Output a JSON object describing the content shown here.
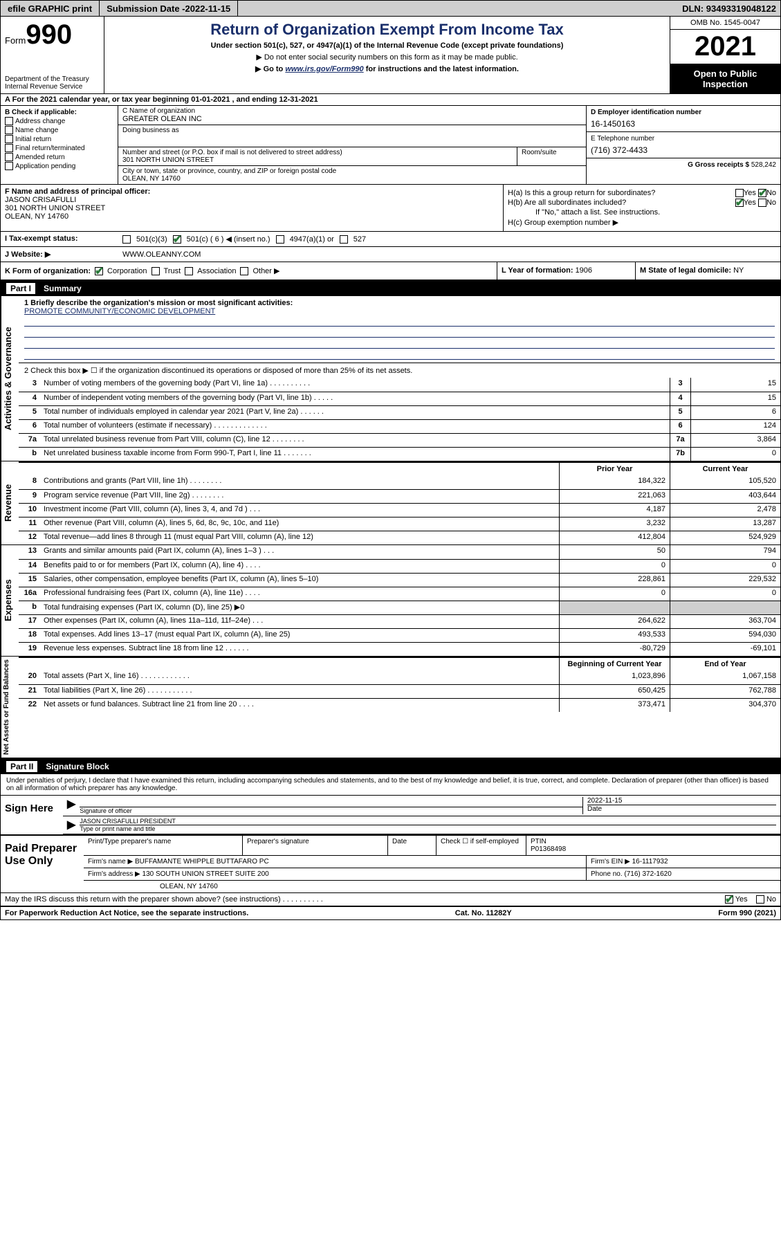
{
  "topbar": {
    "efile": "efile GRAPHIC print",
    "submission_label": "Submission Date - ",
    "submission_date": "2022-11-15",
    "dln_label": "DLN: ",
    "dln": "93493319048122"
  },
  "header": {
    "form_prefix": "Form",
    "form_number": "990",
    "dept": "Department of the Treasury\nInternal Revenue Service",
    "title": "Return of Organization Exempt From Income Tax",
    "sub1": "Under section 501(c), 527, or 4947(a)(1) of the Internal Revenue Code (except private foundations)",
    "sub2_prefix": "▶ Do not enter social security numbers on this form as it may be made public.",
    "sub3_prefix": "▶ Go to ",
    "sub3_link": "www.irs.gov/Form990",
    "sub3_suffix": " for instructions and the latest information.",
    "omb": "OMB No. 1545-0047",
    "year": "2021",
    "inspect": "Open to Public Inspection"
  },
  "row_a": {
    "text_prefix": "A For the 2021 calendar year, or tax year beginning ",
    "begin": "01-01-2021",
    "mid": " , and ending ",
    "end": "12-31-2021"
  },
  "col_b": {
    "label": "B Check if applicable:",
    "items": [
      "Address change",
      "Name change",
      "Initial return",
      "Final return/terminated",
      "Amended return",
      "Application pending"
    ]
  },
  "col_c": {
    "name_label": "C Name of organization",
    "name": "GREATER OLEAN INC",
    "dba_label": "Doing business as",
    "addr_label": "Number and street (or P.O. box if mail is not delivered to street address)",
    "addr": "301 NORTH UNION STREET",
    "room_label": "Room/suite",
    "city_label": "City or town, state or province, country, and ZIP or foreign postal code",
    "city": "OLEAN, NY  14760"
  },
  "col_d": {
    "ein_label": "D Employer identification number",
    "ein": "16-1450163",
    "phone_label": "E Telephone number",
    "phone": "(716) 372-4433",
    "gross_label": "G Gross receipts $ ",
    "gross": "528,242"
  },
  "row_f": {
    "label": "F Name and address of principal officer:",
    "name": "JASON CRISAFULLI",
    "addr": "301 NORTH UNION STREET",
    "city": "OLEAN, NY  14760"
  },
  "row_h": {
    "ha_label": "H(a)  Is this a group return for subordinates?",
    "hb_label": "H(b)  Are all subordinates included?",
    "hb_note": "If \"No,\" attach a list. See instructions.",
    "hc_label": "H(c)  Group exemption number ▶",
    "yes": "Yes",
    "no": "No"
  },
  "row_i": {
    "label": "I   Tax-exempt status:",
    "opts": [
      "501(c)(3)",
      "501(c) ( 6 ) ◀ (insert no.)",
      "4947(a)(1) or",
      "527"
    ]
  },
  "row_j": {
    "label": "J   Website: ▶",
    "val": "WWW.OLEANNY.COM"
  },
  "row_k": {
    "label": "K Form of organization:",
    "opts": [
      "Corporation",
      "Trust",
      "Association",
      "Other ▶"
    ],
    "l_label": "L Year of formation: ",
    "l_val": "1906",
    "m_label": "M State of legal domicile: ",
    "m_val": "NY"
  },
  "part1_label": "Part I",
  "part1_title": "Summary",
  "mission": {
    "line1_label": "1   Briefly describe the organization's mission or most significant activities:",
    "line1_val": "PROMOTE COMMUNITY/ECONOMIC DEVELOPMENT",
    "line2": "2   Check this box ▶ ☐ if the organization discontinued its operations or disposed of more than 25% of its net assets."
  },
  "gov_lines": [
    {
      "n": "3",
      "d": "Number of voting members of the governing body (Part VI, line 1a)  .   .   .   .   .   .   .   .   .   .",
      "b": "3",
      "v": "15"
    },
    {
      "n": "4",
      "d": "Number of independent voting members of the governing body (Part VI, line 1b)   .   .   .   .   .",
      "b": "4",
      "v": "15"
    },
    {
      "n": "5",
      "d": "Total number of individuals employed in calendar year 2021 (Part V, line 2a)   .   .   .   .   .   .",
      "b": "5",
      "v": "6"
    },
    {
      "n": "6",
      "d": "Total number of volunteers (estimate if necessary)   .   .   .   .   .   .   .   .   .   .   .   .   .",
      "b": "6",
      "v": "124"
    },
    {
      "n": "7a",
      "d": "Total unrelated business revenue from Part VIII, column (C), line 12   .   .   .   .   .   .   .   .",
      "b": "7a",
      "v": "3,864"
    },
    {
      "n": "b",
      "d": "Net unrelated business taxable income from Form 990-T, Part I, line 11   .   .   .   .   .   .   .",
      "b": "7b",
      "v": "0"
    }
  ],
  "col_headers": {
    "prior": "Prior Year",
    "current": "Current Year"
  },
  "rev_lines": [
    {
      "n": "8",
      "d": "Contributions and grants (Part VIII, line 1h)   .   .   .   .   .   .   .   .",
      "p": "184,322",
      "c": "105,520"
    },
    {
      "n": "9",
      "d": "Program service revenue (Part VIII, line 2g)   .   .   .   .   .   .   .   .",
      "p": "221,063",
      "c": "403,644"
    },
    {
      "n": "10",
      "d": "Investment income (Part VIII, column (A), lines 3, 4, and 7d )   .   .   .",
      "p": "4,187",
      "c": "2,478"
    },
    {
      "n": "11",
      "d": "Other revenue (Part VIII, column (A), lines 5, 6d, 8c, 9c, 10c, and 11e)",
      "p": "3,232",
      "c": "13,287"
    },
    {
      "n": "12",
      "d": "Total revenue—add lines 8 through 11 (must equal Part VIII, column (A), line 12)",
      "p": "412,804",
      "c": "524,929"
    }
  ],
  "exp_lines": [
    {
      "n": "13",
      "d": "Grants and similar amounts paid (Part IX, column (A), lines 1–3 )   .   .   .",
      "p": "50",
      "c": "794"
    },
    {
      "n": "14",
      "d": "Benefits paid to or for members (Part IX, column (A), line 4)   .   .   .   .",
      "p": "0",
      "c": "0"
    },
    {
      "n": "15",
      "d": "Salaries, other compensation, employee benefits (Part IX, column (A), lines 5–10)",
      "p": "228,861",
      "c": "229,532"
    },
    {
      "n": "16a",
      "d": "Professional fundraising fees (Part IX, column (A), line 11e)   .   .   .   .",
      "p": "0",
      "c": "0"
    },
    {
      "n": "b",
      "d": "Total fundraising expenses (Part IX, column (D), line 25) ▶0",
      "p": "",
      "c": "",
      "shade": true
    },
    {
      "n": "17",
      "d": "Other expenses (Part IX, column (A), lines 11a–11d, 11f–24e)  .   .   .",
      "p": "264,622",
      "c": "363,704"
    },
    {
      "n": "18",
      "d": "Total expenses. Add lines 13–17 (must equal Part IX, column (A), line 25)",
      "p": "493,533",
      "c": "594,030"
    },
    {
      "n": "19",
      "d": "Revenue less expenses. Subtract line 18 from line 12   .   .   .   .   .   .",
      "p": "-80,729",
      "c": "-69,101"
    }
  ],
  "net_headers": {
    "begin": "Beginning of Current Year",
    "end": "End of Year"
  },
  "net_lines": [
    {
      "n": "20",
      "d": "Total assets (Part X, line 16)   .   .   .   .   .   .   .   .   .   .   .   .",
      "p": "1,023,896",
      "c": "1,067,158"
    },
    {
      "n": "21",
      "d": "Total liabilities (Part X, line 26)   .   .   .   .   .   .   .   .   .   .   .",
      "p": "650,425",
      "c": "762,788"
    },
    {
      "n": "22",
      "d": "Net assets or fund balances. Subtract line 21 from line 20   .   .   .   .",
      "p": "373,471",
      "c": "304,370"
    }
  ],
  "part2_label": "Part II",
  "part2_title": "Signature Block",
  "sig_text": "Under penalties of perjury, I declare that I have examined this return, including accompanying schedules and statements, and to the best of my knowledge and belief, it is true, correct, and complete. Declaration of preparer (other than officer) is based on all information of which preparer has any knowledge.",
  "sign_here": "Sign Here",
  "sig_officer_label": "Signature of officer",
  "sig_date": "2022-11-15",
  "sig_date_label": "Date",
  "sig_name": "JASON CRISAFULLI  PRESIDENT",
  "sig_name_label": "Type or print name and title",
  "paid_label": "Paid Preparer Use Only",
  "paid_rows": {
    "r1": {
      "c1": "Print/Type preparer's name",
      "c2": "Preparer's signature",
      "c3": "Date",
      "c4_label": "Check ☐ if self-employed",
      "c5_label": "PTIN",
      "c5_val": "P01368498"
    },
    "r2": {
      "label": "Firm's name      ▶ ",
      "val": "BUFFAMANTE WHIPPLE BUTTAFARO PC",
      "ein_label": "Firm's EIN ▶ ",
      "ein": "16-1117932"
    },
    "r3": {
      "label": "Firm's address ▶ ",
      "val": "130 SOUTH UNION STREET SUITE 200",
      "phone_label": "Phone no. ",
      "phone": "(716) 372-1620"
    },
    "r4": {
      "city": "OLEAN, NY  14760"
    }
  },
  "bottom": {
    "q": "May the IRS discuss this return with the preparer shown above? (see instructions)   .   .   .   .   .   .   .   .   .   .",
    "yes": "Yes",
    "no": "No"
  },
  "footer": {
    "left": "For Paperwork Reduction Act Notice, see the separate instructions.",
    "mid": "Cat. No. 11282Y",
    "right": "Form 990 (2021)"
  },
  "vlabels": {
    "gov": "Activities & Governance",
    "rev": "Revenue",
    "exp": "Expenses",
    "net": "Net Assets or Fund Balances"
  }
}
